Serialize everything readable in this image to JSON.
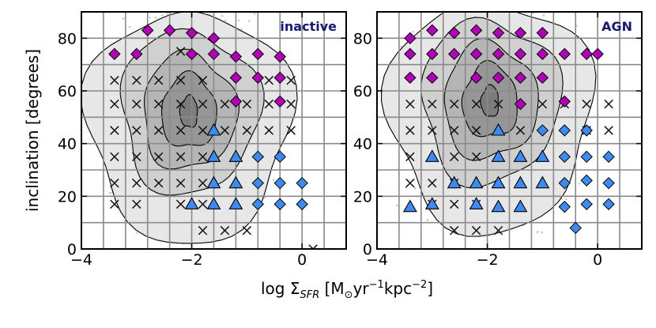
{
  "figure": {
    "xlabel": "log Σ",
    "xlabel_sub": "SFR",
    "xlabel_units_open": " [M",
    "xlabel_sun": "⊙",
    "xlabel_yr": "yr",
    "xlabel_exp1": "−1",
    "xlabel_kpc": "kpc",
    "xlabel_exp2": "−2",
    "xlabel_close": "]",
    "ylabel": "inclination [degrees]"
  },
  "colors": {
    "magenta": "#b000b8",
    "blue": "#3d8bf0",
    "cross": "#111111",
    "scatter": "#c8c8c8",
    "title_text": "#191970"
  },
  "chart_data": [
    {
      "type": "scatter",
      "title": "inactive",
      "xlim": [
        -4,
        0.8
      ],
      "ylim": [
        0,
        90
      ],
      "xticks": [
        -4,
        -2,
        0
      ],
      "xtick_labels": [
        "−4",
        "−2",
        "0"
      ],
      "yticks": [
        0,
        20,
        40,
        60,
        80
      ],
      "ytick_labels": [
        "0",
        "20",
        "40",
        "60",
        "80"
      ],
      "grid_x": [
        -3.6,
        -3.2,
        -2.8,
        -2.4,
        -2.0,
        -1.6,
        -1.2,
        -0.8,
        -0.4,
        0.0,
        0.4
      ],
      "grid_y": [
        10,
        20,
        30,
        40,
        50,
        60,
        70,
        80
      ],
      "series": [
        {
          "name": "crosses",
          "marker": "x",
          "points": [
            [
              -3.4,
              17
            ],
            [
              -3.4,
              25
            ],
            [
              -3.4,
              35
            ],
            [
              -3.4,
              45
            ],
            [
              -3.4,
              55
            ],
            [
              -3.4,
              64
            ],
            [
              -3.0,
              17
            ],
            [
              -3.0,
              25
            ],
            [
              -3.0,
              35
            ],
            [
              -3.0,
              45
            ],
            [
              -3.0,
              55
            ],
            [
              -3.0,
              64
            ],
            [
              -2.6,
              25
            ],
            [
              -2.6,
              35
            ],
            [
              -2.6,
              45
            ],
            [
              -2.6,
              55
            ],
            [
              -2.6,
              64
            ],
            [
              -2.2,
              17
            ],
            [
              -2.2,
              25
            ],
            [
              -2.2,
              35
            ],
            [
              -2.2,
              45
            ],
            [
              -2.2,
              55
            ],
            [
              -2.2,
              64
            ],
            [
              -2.2,
              75
            ],
            [
              -1.8,
              7
            ],
            [
              -1.8,
              17
            ],
            [
              -1.8,
              25
            ],
            [
              -1.8,
              35
            ],
            [
              -1.8,
              45
            ],
            [
              -1.8,
              55
            ],
            [
              -1.8,
              64
            ],
            [
              -1.4,
              7
            ],
            [
              -1.4,
              45
            ],
            [
              -1.4,
              55
            ],
            [
              -1.0,
              7
            ],
            [
              -1.0,
              45
            ],
            [
              -1.0,
              55
            ],
            [
              -0.6,
              45
            ],
            [
              -0.6,
              55
            ],
            [
              -0.6,
              64
            ],
            [
              -0.2,
              45
            ],
            [
              -0.2,
              55
            ],
            [
              -0.2,
              64
            ],
            [
              0.2,
              0
            ]
          ]
        },
        {
          "name": "diamonds-magenta",
          "marker": "D",
          "color": "#b000b8",
          "points": [
            [
              -3.4,
              74
            ],
            [
              -3.0,
              74
            ],
            [
              -2.8,
              83
            ],
            [
              -2.4,
              83
            ],
            [
              -2.0,
              82
            ],
            [
              -2.0,
              74
            ],
            [
              -1.6,
              80
            ],
            [
              -1.6,
              74
            ],
            [
              -1.2,
              73
            ],
            [
              -1.2,
              65
            ],
            [
              -0.8,
              74
            ],
            [
              -0.8,
              65
            ],
            [
              -0.4,
              73
            ],
            [
              -0.4,
              65
            ],
            [
              -0.4,
              56
            ],
            [
              -1.2,
              56
            ]
          ]
        },
        {
          "name": "triangles-blue",
          "marker": "^",
          "color": "#3d8bf0",
          "points": [
            [
              -2.0,
              17
            ],
            [
              -1.6,
              17
            ],
            [
              -1.2,
              17
            ],
            [
              -1.6,
              25
            ],
            [
              -1.2,
              25
            ],
            [
              -1.6,
              35
            ],
            [
              -1.2,
              35
            ],
            [
              -1.6,
              45
            ]
          ]
        },
        {
          "name": "diamonds-blue",
          "marker": "D",
          "color": "#3d8bf0",
          "points": [
            [
              -0.8,
              25
            ],
            [
              -0.8,
              35
            ],
            [
              -0.8,
              17
            ],
            [
              -0.4,
              17
            ],
            [
              -0.4,
              25
            ],
            [
              -0.4,
              35
            ],
            [
              0.0,
              17
            ],
            [
              0.0,
              25
            ]
          ]
        }
      ]
    },
    {
      "type": "scatter",
      "title": "AGN",
      "xlim": [
        -4,
        0.8
      ],
      "ylim": [
        0,
        90
      ],
      "xticks": [
        -4,
        -2,
        0
      ],
      "xtick_labels": [
        "−4",
        "−2",
        "0"
      ],
      "yticks": [
        0,
        20,
        40,
        60,
        80
      ],
      "ytick_labels": [
        "0",
        "20",
        "40",
        "60",
        "80"
      ],
      "grid_x": [
        -3.6,
        -3.2,
        -2.8,
        -2.4,
        -2.0,
        -1.6,
        -1.2,
        -0.8,
        -0.4,
        0.0,
        0.4
      ],
      "grid_y": [
        10,
        20,
        30,
        40,
        50,
        60,
        70,
        80
      ],
      "series": [
        {
          "name": "crosses",
          "marker": "x",
          "points": [
            [
              -3.4,
              25
            ],
            [
              -3.4,
              35
            ],
            [
              -3.4,
              45
            ],
            [
              -3.4,
              55
            ],
            [
              -3.0,
              17
            ],
            [
              -3.0,
              25
            ],
            [
              -3.0,
              45
            ],
            [
              -3.0,
              55
            ],
            [
              -2.6,
              7
            ],
            [
              -2.6,
              17
            ],
            [
              -2.6,
              25
            ],
            [
              -2.6,
              35
            ],
            [
              -2.6,
              45
            ],
            [
              -2.6,
              55
            ],
            [
              -2.2,
              7
            ],
            [
              -2.2,
              17
            ],
            [
              -2.2,
              35
            ],
            [
              -2.2,
              45
            ],
            [
              -2.2,
              55
            ],
            [
              -1.8,
              7
            ],
            [
              -1.8,
              55
            ],
            [
              -1.4,
              45
            ],
            [
              -1.0,
              55
            ],
            [
              -0.6,
              55
            ],
            [
              -0.2,
              45
            ],
            [
              -0.2,
              55
            ],
            [
              0.2,
              45
            ],
            [
              0.2,
              55
            ]
          ]
        },
        {
          "name": "diamonds-magenta",
          "marker": "D",
          "color": "#b000b8",
          "points": [
            [
              -3.4,
              80
            ],
            [
              -3.4,
              74
            ],
            [
              -3.4,
              65
            ],
            [
              -3.0,
              83
            ],
            [
              -3.0,
              74
            ],
            [
              -3.0,
              65
            ],
            [
              -2.6,
              82
            ],
            [
              -2.6,
              74
            ],
            [
              -2.2,
              83
            ],
            [
              -2.2,
              74
            ],
            [
              -2.2,
              65
            ],
            [
              -1.8,
              82
            ],
            [
              -1.8,
              74
            ],
            [
              -1.8,
              65
            ],
            [
              -1.4,
              82
            ],
            [
              -1.4,
              74
            ],
            [
              -1.4,
              65
            ],
            [
              -1.4,
              55
            ],
            [
              -1.0,
              82
            ],
            [
              -1.0,
              74
            ],
            [
              -1.0,
              65
            ],
            [
              -0.6,
              74
            ],
            [
              -0.6,
              56
            ],
            [
              -0.2,
              74
            ],
            [
              0.0,
              74
            ]
          ]
        },
        {
          "name": "triangles-blue",
          "marker": "^",
          "color": "#3d8bf0",
          "points": [
            [
              -3.4,
              16
            ],
            [
              -3.0,
              17
            ],
            [
              -3.0,
              35
            ],
            [
              -2.6,
              25
            ],
            [
              -2.2,
              25
            ],
            [
              -2.2,
              17
            ],
            [
              -1.8,
              45
            ],
            [
              -1.8,
              35
            ],
            [
              -1.8,
              25
            ],
            [
              -1.8,
              16
            ],
            [
              -1.4,
              35
            ],
            [
              -1.4,
              25
            ],
            [
              -1.4,
              16
            ],
            [
              -1.0,
              35
            ],
            [
              -1.0,
              25
            ]
          ]
        },
        {
          "name": "diamonds-blue",
          "marker": "D",
          "color": "#3d8bf0",
          "points": [
            [
              -1.0,
              45
            ],
            [
              -0.6,
              45
            ],
            [
              -0.6,
              35
            ],
            [
              -0.6,
              25
            ],
            [
              -0.6,
              16
            ],
            [
              -0.2,
              45
            ],
            [
              -0.2,
              35
            ],
            [
              -0.2,
              26
            ],
            [
              -0.2,
              17
            ],
            [
              0.2,
              35
            ],
            [
              0.2,
              25
            ],
            [
              0.2,
              17
            ],
            [
              -0.4,
              8
            ]
          ]
        }
      ]
    }
  ]
}
